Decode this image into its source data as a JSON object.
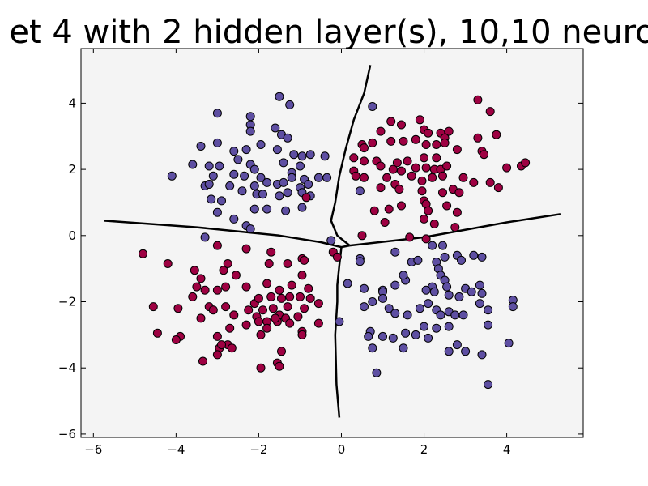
{
  "chart_data": {
    "type": "scatter",
    "title": "et 4 with 2 hidden layer(s), 10,10 neuro",
    "xlabel": "",
    "ylabel": "",
    "xlim": [
      -6.3,
      5.85
    ],
    "ylim": [
      -6.1,
      5.65
    ],
    "grid": false,
    "plot_background": "#f4f4f4",
    "x_ticks": [
      -6,
      -4,
      -2,
      0,
      2,
      4
    ],
    "y_ticks": [
      -6,
      -4,
      -2,
      0,
      2,
      4
    ],
    "x_tick_labels": [
      "−6",
      "−4",
      "−2",
      "0",
      "2",
      "4"
    ],
    "y_tick_labels": [
      "−6",
      "−4",
      "−2",
      "0",
      "2",
      "4"
    ],
    "series": [
      {
        "color": "#5e4fa2",
        "points": [
          [
            -3.0,
            3.7
          ],
          [
            -2.2,
            3.6
          ],
          [
            -1.5,
            4.2
          ],
          [
            -1.25,
            3.95
          ],
          [
            -2.2,
            3.35
          ],
          [
            -2.2,
            3.15
          ],
          [
            -1.6,
            3.25
          ],
          [
            -1.45,
            3.05
          ],
          [
            -1.3,
            2.95
          ],
          [
            -3.4,
            2.7
          ],
          [
            -3.0,
            2.8
          ],
          [
            -2.6,
            2.55
          ],
          [
            -2.3,
            2.6
          ],
          [
            -1.95,
            2.75
          ],
          [
            -1.55,
            2.6
          ],
          [
            -1.15,
            2.45
          ],
          [
            -0.95,
            2.4
          ],
          [
            -0.75,
            2.45
          ],
          [
            -0.4,
            2.4
          ],
          [
            -2.5,
            2.3
          ],
          [
            -2.2,
            2.15
          ],
          [
            -1.4,
            2.2
          ],
          [
            -1.0,
            2.1
          ],
          [
            -3.6,
            2.15
          ],
          [
            -3.2,
            2.1
          ],
          [
            -2.95,
            2.1
          ],
          [
            -2.1,
            2.0
          ],
          [
            -1.2,
            1.9
          ],
          [
            -4.1,
            1.8
          ],
          [
            -3.1,
            1.8
          ],
          [
            -2.6,
            1.85
          ],
          [
            -2.35,
            1.8
          ],
          [
            -1.95,
            1.75
          ],
          [
            -1.2,
            1.75
          ],
          [
            -0.9,
            1.7
          ],
          [
            -0.55,
            1.75
          ],
          [
            -0.35,
            1.75
          ],
          [
            -3.3,
            1.5
          ],
          [
            -3.2,
            1.55
          ],
          [
            -2.7,
            1.5
          ],
          [
            -2.4,
            1.35
          ],
          [
            -2.1,
            1.5
          ],
          [
            -1.8,
            1.6
          ],
          [
            -1.55,
            1.55
          ],
          [
            -1.4,
            1.6
          ],
          [
            -1.0,
            1.45
          ],
          [
            -0.8,
            1.55
          ],
          [
            -2.9,
            1.05
          ],
          [
            -3.15,
            1.1
          ],
          [
            -2.05,
            1.25
          ],
          [
            -1.9,
            1.25
          ],
          [
            -1.5,
            1.2
          ],
          [
            -1.3,
            1.3
          ],
          [
            -0.95,
            1.3
          ],
          [
            -0.75,
            1.2
          ],
          [
            -2.1,
            0.8
          ],
          [
            -1.8,
            0.8
          ],
          [
            -1.35,
            0.75
          ],
          [
            -0.95,
            0.85
          ],
          [
            -3.0,
            0.7
          ],
          [
            -2.6,
            0.5
          ],
          [
            -2.3,
            0.3
          ],
          [
            -2.2,
            0.2
          ],
          [
            -3.3,
            -0.05
          ],
          [
            -0.25,
            -0.15
          ],
          [
            0.75,
            3.9
          ],
          [
            0.45,
            1.35
          ],
          [
            0.45,
            -0.7
          ],
          [
            0.45,
            -0.78
          ],
          [
            0.15,
            -1.45
          ],
          [
            0.55,
            -1.6
          ],
          [
            0.75,
            -2.0
          ],
          [
            1.0,
            -1.65
          ],
          [
            1.3,
            -1.5
          ],
          [
            1.55,
            -1.35
          ],
          [
            1.3,
            -0.5
          ],
          [
            1.7,
            -0.8
          ],
          [
            1.85,
            -0.75
          ],
          [
            2.3,
            -0.8
          ],
          [
            2.5,
            -0.65
          ],
          [
            2.35,
            -1.0
          ],
          [
            2.4,
            -1.2
          ],
          [
            2.5,
            -1.35
          ],
          [
            2.55,
            -1.55
          ],
          [
            2.8,
            -0.6
          ],
          [
            2.9,
            -0.75
          ],
          [
            3.2,
            -0.6
          ],
          [
            3.4,
            -0.65
          ],
          [
            2.2,
            -0.3
          ],
          [
            2.45,
            -0.3
          ],
          [
            1.0,
            -1.7
          ],
          [
            1.0,
            -1.9
          ],
          [
            1.15,
            -2.2
          ],
          [
            1.3,
            -2.35
          ],
          [
            1.6,
            -2.4
          ],
          [
            1.9,
            -2.2
          ],
          [
            2.1,
            -2.05
          ],
          [
            2.3,
            -2.25
          ],
          [
            2.4,
            -2.4
          ],
          [
            2.6,
            -2.3
          ],
          [
            2.75,
            -2.4
          ],
          [
            2.2,
            -1.55
          ],
          [
            2.25,
            -1.7
          ],
          [
            2.05,
            -1.65
          ],
          [
            2.6,
            -1.8
          ],
          [
            2.85,
            -1.85
          ],
          [
            3.0,
            -1.6
          ],
          [
            3.15,
            -1.7
          ],
          [
            3.4,
            -1.75
          ],
          [
            3.35,
            -1.5
          ],
          [
            3.55,
            -2.25
          ],
          [
            3.35,
            -2.05
          ],
          [
            2.95,
            -2.4
          ],
          [
            2.6,
            -2.75
          ],
          [
            2.3,
            -2.8
          ],
          [
            2.0,
            -2.75
          ],
          [
            1.8,
            -3.0
          ],
          [
            1.55,
            -2.95
          ],
          [
            1.25,
            -3.1
          ],
          [
            1.0,
            -3.05
          ],
          [
            0.7,
            -2.9
          ],
          [
            0.65,
            -3.05
          ],
          [
            0.75,
            -3.4
          ],
          [
            0.85,
            -4.15
          ],
          [
            1.5,
            -3.4
          ],
          [
            2.1,
            -3.1
          ],
          [
            2.6,
            -3.5
          ],
          [
            2.8,
            -3.3
          ],
          [
            3.0,
            -3.5
          ],
          [
            3.4,
            -3.6
          ],
          [
            3.55,
            -4.5
          ],
          [
            3.55,
            -2.7
          ],
          [
            4.05,
            -3.25
          ],
          [
            4.15,
            -1.95
          ],
          [
            4.15,
            -2.15
          ],
          [
            0.55,
            -2.15
          ],
          [
            -0.05,
            -2.6
          ],
          [
            1.5,
            -1.2
          ]
        ]
      },
      {
        "color": "#9e0142",
        "points": [
          [
            3.3,
            4.1
          ],
          [
            3.6,
            3.75
          ],
          [
            1.45,
            3.35
          ],
          [
            1.2,
            3.45
          ],
          [
            1.9,
            3.5
          ],
          [
            2.0,
            3.2
          ],
          [
            2.1,
            3.1
          ],
          [
            2.4,
            3.1
          ],
          [
            2.6,
            3.15
          ],
          [
            2.5,
            2.95
          ],
          [
            3.3,
            2.95
          ],
          [
            3.75,
            3.05
          ],
          [
            0.5,
            2.75
          ],
          [
            0.55,
            2.65
          ],
          [
            0.75,
            2.8
          ],
          [
            0.95,
            3.15
          ],
          [
            1.2,
            2.85
          ],
          [
            1.5,
            2.85
          ],
          [
            1.8,
            2.9
          ],
          [
            2.05,
            2.75
          ],
          [
            2.3,
            2.75
          ],
          [
            2.5,
            2.8
          ],
          [
            2.8,
            2.6
          ],
          [
            3.4,
            2.55
          ],
          [
            3.45,
            2.45
          ],
          [
            0.3,
            2.35
          ],
          [
            0.55,
            2.25
          ],
          [
            0.85,
            2.25
          ],
          [
            0.95,
            2.1
          ],
          [
            1.35,
            2.2
          ],
          [
            1.6,
            2.25
          ],
          [
            2.0,
            2.35
          ],
          [
            2.3,
            2.35
          ],
          [
            1.8,
            2.05
          ],
          [
            2.05,
            2.05
          ],
          [
            2.25,
            2.0
          ],
          [
            2.4,
            2.0
          ],
          [
            2.55,
            2.1
          ],
          [
            0.3,
            1.95
          ],
          [
            1.25,
            2.0
          ],
          [
            1.45,
            1.95
          ],
          [
            1.7,
            1.8
          ],
          [
            1.95,
            1.65
          ],
          [
            2.2,
            1.75
          ],
          [
            2.45,
            1.8
          ],
          [
            2.95,
            1.75
          ],
          [
            3.2,
            1.6
          ],
          [
            3.6,
            1.6
          ],
          [
            3.8,
            1.45
          ],
          [
            4.0,
            2.05
          ],
          [
            4.35,
            2.1
          ],
          [
            4.45,
            2.2
          ],
          [
            0.35,
            1.8
          ],
          [
            0.55,
            1.75
          ],
          [
            1.1,
            1.75
          ],
          [
            1.3,
            1.55
          ],
          [
            1.4,
            1.4
          ],
          [
            1.95,
            1.35
          ],
          [
            2.45,
            1.3
          ],
          [
            2.7,
            1.4
          ],
          [
            2.85,
            1.3
          ],
          [
            0.95,
            1.45
          ],
          [
            0.8,
            0.75
          ],
          [
            1.15,
            0.8
          ],
          [
            1.45,
            0.9
          ],
          [
            2.0,
            1.05
          ],
          [
            2.05,
            0.95
          ],
          [
            2.55,
            0.9
          ],
          [
            2.8,
            0.7
          ],
          [
            2.1,
            0.75
          ],
          [
            1.05,
            0.4
          ],
          [
            2.0,
            0.5
          ],
          [
            2.25,
            0.35
          ],
          [
            2.75,
            0.25
          ],
          [
            1.65,
            -0.05
          ],
          [
            2.05,
            -0.1
          ],
          [
            0.5,
            0.0
          ],
          [
            -0.85,
            1.15
          ],
          [
            -0.2,
            -0.5
          ],
          [
            -0.95,
            -0.7
          ],
          [
            -1.7,
            -0.5
          ],
          [
            -2.3,
            -0.4
          ],
          [
            -3.0,
            -0.3
          ],
          [
            -4.8,
            -0.55
          ],
          [
            -4.2,
            -0.85
          ],
          [
            -3.55,
            -1.05
          ],
          [
            -3.4,
            -1.3
          ],
          [
            -2.85,
            -1.05
          ],
          [
            -2.75,
            -0.85
          ],
          [
            -2.55,
            -1.2
          ],
          [
            -2.3,
            -1.55
          ],
          [
            -1.8,
            -1.45
          ],
          [
            -1.5,
            -1.65
          ],
          [
            -1.2,
            -1.5
          ],
          [
            -0.95,
            -1.2
          ],
          [
            -0.8,
            -1.6
          ],
          [
            -0.9,
            -0.75
          ],
          [
            -1.75,
            -0.85
          ],
          [
            -1.3,
            -0.85
          ],
          [
            -3.5,
            -1.55
          ],
          [
            -3.3,
            -1.65
          ],
          [
            -3.0,
            -1.65
          ],
          [
            -2.8,
            -1.55
          ],
          [
            -3.6,
            -1.85
          ],
          [
            -3.2,
            -2.15
          ],
          [
            -3.1,
            -2.25
          ],
          [
            -2.8,
            -2.15
          ],
          [
            -2.6,
            -2.4
          ],
          [
            -2.25,
            -2.25
          ],
          [
            -2.1,
            -2.05
          ],
          [
            -2.0,
            -1.9
          ],
          [
            -1.7,
            -1.85
          ],
          [
            -1.45,
            -1.9
          ],
          [
            -1.25,
            -1.85
          ],
          [
            -1.0,
            -1.85
          ],
          [
            -0.75,
            -1.9
          ],
          [
            -0.55,
            -2.05
          ],
          [
            -0.9,
            -2.2
          ],
          [
            -1.3,
            -2.15
          ],
          [
            -1.65,
            -2.2
          ],
          [
            -1.9,
            -2.25
          ],
          [
            -2.05,
            -2.45
          ],
          [
            -1.5,
            -2.4
          ],
          [
            -1.35,
            -2.5
          ],
          [
            -1.05,
            -2.45
          ],
          [
            -1.25,
            -2.65
          ],
          [
            -1.55,
            -2.6
          ],
          [
            -1.6,
            -2.5
          ],
          [
            -1.8,
            -2.6
          ],
          [
            -2.0,
            -2.6
          ],
          [
            -1.8,
            -2.8
          ],
          [
            -2.3,
            -2.7
          ],
          [
            -1.95,
            -3.0
          ],
          [
            -0.95,
            -2.9
          ],
          [
            -0.95,
            -3.0
          ],
          [
            -0.55,
            -2.65
          ],
          [
            -2.7,
            -2.8
          ],
          [
            -3.4,
            -2.5
          ],
          [
            -3.95,
            -2.2
          ],
          [
            -4.55,
            -2.15
          ],
          [
            -4.45,
            -2.95
          ],
          [
            -3.9,
            -3.05
          ],
          [
            -4.0,
            -3.15
          ],
          [
            -3.0,
            -3.05
          ],
          [
            -2.75,
            -3.3
          ],
          [
            -2.95,
            -3.4
          ],
          [
            -2.9,
            -3.3
          ],
          [
            -2.65,
            -3.4
          ],
          [
            -3.0,
            -3.6
          ],
          [
            -3.35,
            -3.8
          ],
          [
            -1.45,
            -3.5
          ],
          [
            -1.55,
            -3.85
          ],
          [
            -1.5,
            -3.95
          ],
          [
            -1.95,
            -4.0
          ],
          [
            -0.1,
            -0.65
          ]
        ]
      }
    ],
    "decision_boundary": [
      [
        [
          0.7,
          5.15
        ],
        [
          0.55,
          4.3
        ],
        [
          0.3,
          3.5
        ],
        [
          0.1,
          2.6
        ],
        [
          -0.05,
          1.8
        ],
        [
          -0.15,
          1.0
        ],
        [
          -0.25,
          0.45
        ],
        [
          -0.1,
          0.0
        ],
        [
          0.2,
          -0.3
        ]
      ],
      [
        [
          -5.75,
          0.45
        ],
        [
          -3.5,
          0.25
        ],
        [
          -1.5,
          0.0
        ],
        [
          -0.5,
          -0.2
        ],
        [
          0.0,
          -0.35
        ],
        [
          0.2,
          -0.3
        ]
      ],
      [
        [
          0.2,
          -0.3
        ],
        [
          2.0,
          -0.05
        ],
        [
          4.0,
          0.4
        ],
        [
          5.3,
          0.65
        ]
      ],
      [
        [
          0.0,
          -0.35
        ],
        [
          -0.05,
          -0.9
        ],
        [
          -0.1,
          -1.5
        ],
        [
          -0.1,
          -2.0
        ],
        [
          -0.15,
          -3.0
        ],
        [
          -0.12,
          -4.5
        ],
        [
          -0.05,
          -5.5
        ]
      ]
    ]
  }
}
